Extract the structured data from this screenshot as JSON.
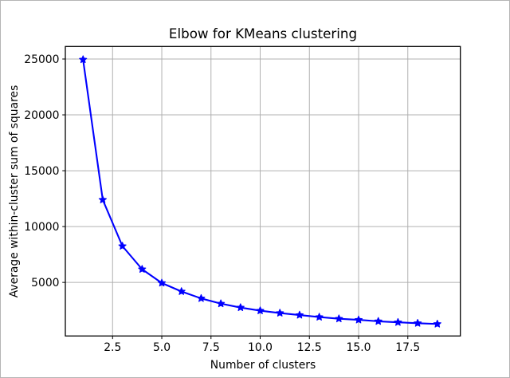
{
  "chart_data": {
    "type": "line",
    "title": "Elbow for KMeans clustering",
    "xlabel": "Number of clusters",
    "ylabel": "Average within-cluster sum of squares",
    "series": [
      {
        "name": "average within-cluster sum of squares",
        "x": [
          1,
          2,
          3,
          4,
          5,
          6,
          7,
          8,
          9,
          10,
          11,
          12,
          13,
          14,
          15,
          16,
          17,
          18,
          19
        ],
        "y": [
          24950,
          12400,
          8250,
          6180,
          4950,
          4190,
          3570,
          3100,
          2750,
          2470,
          2260,
          2080,
          1900,
          1750,
          1650,
          1520,
          1430,
          1350,
          1280
        ]
      }
    ],
    "marker": "star",
    "line_color": "#0000ff",
    "marker_color": "#0000ff",
    "grid": true,
    "grid_color": "#b0b0b0",
    "spine_color": "#000000",
    "background_color": "#ffffff",
    "figure_border_color": "#b4b4b4",
    "legend": "none",
    "xlim": [
      0.1,
      20.17
    ],
    "ylim": [
      206,
      26120
    ],
    "xticks": [
      2.5,
      5.0,
      7.5,
      10.0,
      12.5,
      15.0,
      17.5
    ],
    "xtick_labels": [
      "2.5",
      "5.0",
      "7.5",
      "10.0",
      "12.5",
      "15.0",
      "17.5"
    ],
    "yticks": [
      5000,
      10000,
      15000,
      20000,
      25000
    ],
    "ytick_labels": [
      "5000",
      "10000",
      "15000",
      "20000",
      "25000"
    ]
  }
}
